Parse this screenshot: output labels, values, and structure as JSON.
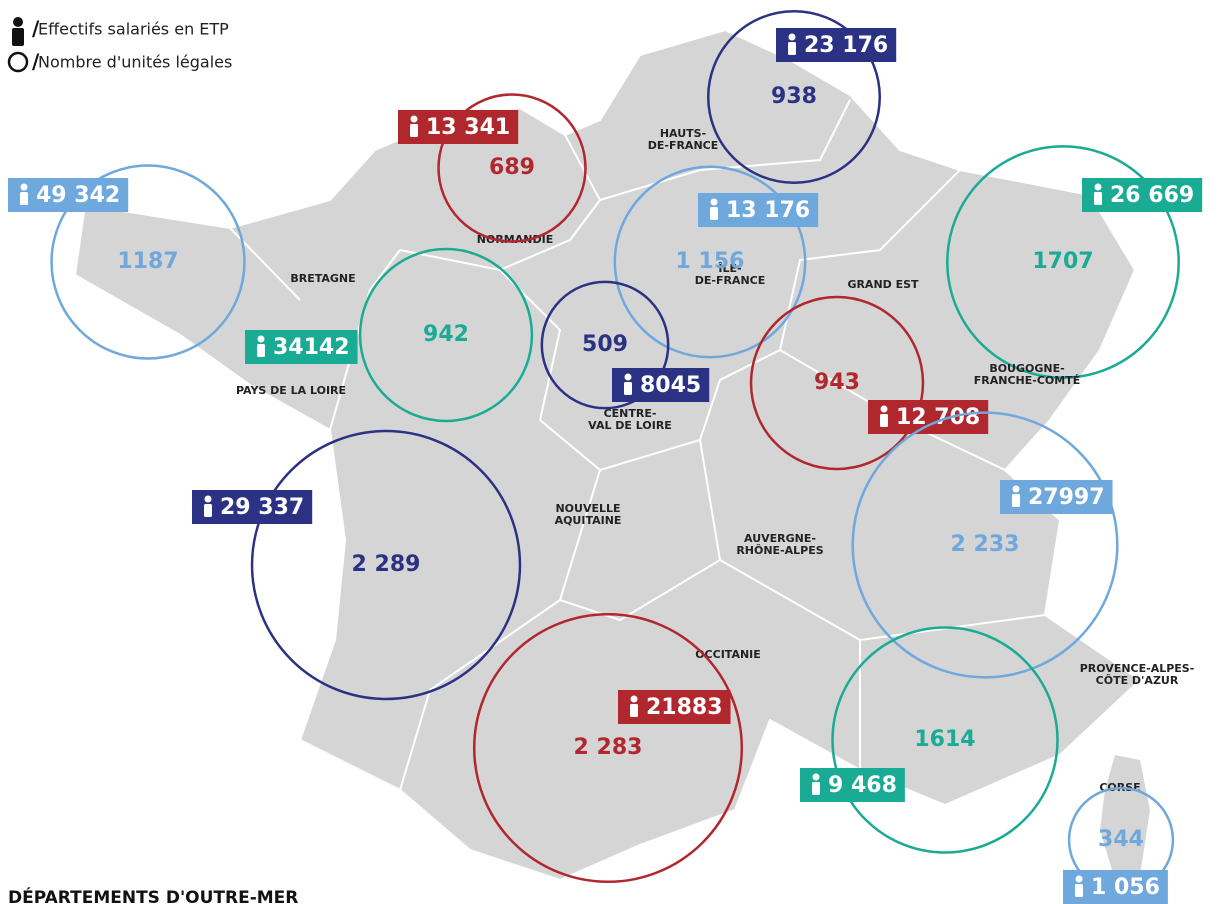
{
  "legend": {
    "employees": "Effectifs salariés en ETP",
    "units": "Nombre d'unités légales"
  },
  "regions": [
    {
      "name": [
        "HAUTS-",
        "DE-FRANCE"
      ],
      "units": 938,
      "employees": 23176,
      "employees_label": "23 176",
      "color": "#2b3283"
    },
    {
      "name": [
        "NORMANDIE"
      ],
      "units": 689,
      "employees": 13341,
      "employees_label": "13 341",
      "color": "#b1272e"
    },
    {
      "name": [
        "BRETAGNE"
      ],
      "units": 1187,
      "employees": 49342,
      "employees_label": "49 342",
      "color": "#6fa8dc"
    },
    {
      "name": [
        "ÎLE-",
        "DE-FRANCE"
      ],
      "units": 1156,
      "units_label": "1 156",
      "employees": 13176,
      "employees_label": "13 176",
      "color": "#6fa8dc"
    },
    {
      "name": [
        "GRAND EST"
      ],
      "units": 1707,
      "employees": 26669,
      "employees_label": "26 669",
      "color": "#1aab94"
    },
    {
      "name": [
        "PAYS DE LA LOIRE"
      ],
      "units": 942,
      "employees": 34142,
      "color": "#1aab94"
    },
    {
      "name": [
        "CENTRE-",
        "VAL DE LOIRE"
      ],
      "units": 509,
      "employees": 8045,
      "color": "#2b3283"
    },
    {
      "name": [
        "BOUGOGNE-",
        "FRANCHE-COMTÉ"
      ],
      "units": 943,
      "employees": 12708,
      "employees_label": "12 708",
      "color": "#b1272e"
    },
    {
      "name": [
        "NOUVELLE",
        "AQUITAINE"
      ],
      "units": 2289,
      "units_label": "2 289",
      "employees": 29337,
      "employees_label": "29 337",
      "color": "#2b3283"
    },
    {
      "name": [
        "AUVERGNE-",
        "RHÔNE-ALPES"
      ],
      "units": 2233,
      "units_label": "2 233",
      "employees": 27997,
      "color": "#6fa8dc"
    },
    {
      "name": [
        "OCCITANIE"
      ],
      "units": 2283,
      "units_label": "2 283",
      "employees": 21883,
      "color": "#b1272e"
    },
    {
      "name": [
        "PROVENCE-ALPES-",
        "CÔTE D'AZUR"
      ],
      "units": 1614,
      "employees": 9468,
      "employees_label": "9 468",
      "color": "#1aab94"
    },
    {
      "name": [
        "CORSE"
      ],
      "units": 344,
      "employees": 1056,
      "employees_label": "1 056",
      "color": "#6fa8dc"
    }
  ],
  "footer": "DÉPARTEMENTS D'OUTRE-MER"
}
